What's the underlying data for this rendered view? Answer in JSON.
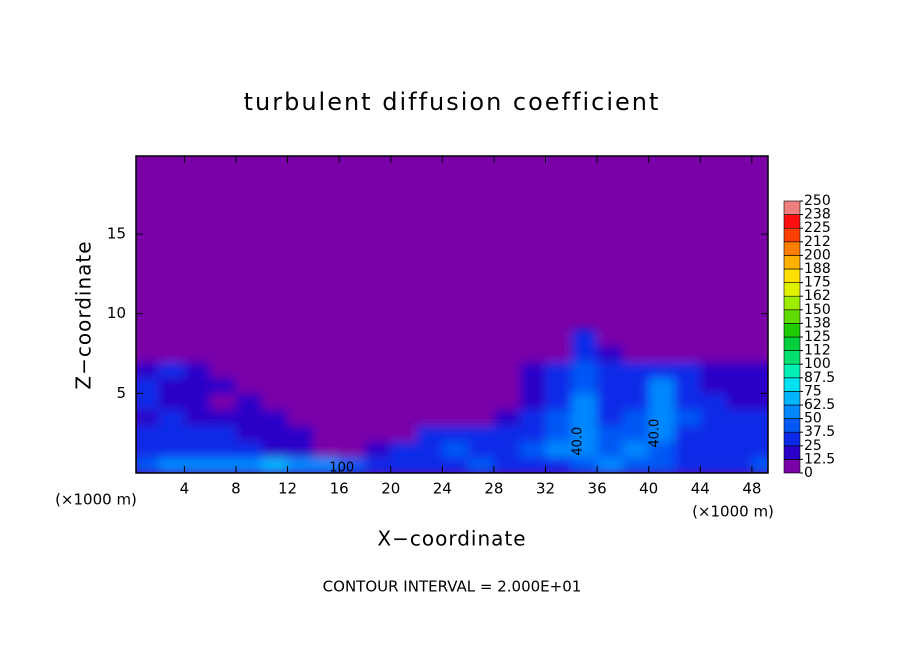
{
  "chart_data": {
    "type": "contour",
    "title": "turbulent diffusion coefficient",
    "x_label": "X−coordinate",
    "y_label": "Z−coordinate",
    "x_unit": "(×1000 m)",
    "y_unit": "(×1000 m)",
    "footnote": "CONTOUR INTERVAL = 2.000E+01",
    "xlim": [
      0.25,
      49.25
    ],
    "xticks": [
      4,
      8,
      12,
      16,
      20,
      24,
      28,
      32,
      36,
      40,
      44,
      48
    ],
    "ylim": [
      0,
      19.9
    ],
    "yticks": [
      5,
      10,
      15
    ],
    "contour_labels": [
      "40.0",
      "40.0",
      "100"
    ],
    "field": {
      "x_edges": [
        0,
        2,
        4,
        6,
        8,
        10,
        12,
        14,
        16,
        18,
        20,
        22,
        24,
        26,
        28,
        30,
        32,
        34,
        36,
        38,
        40,
        42,
        44,
        46,
        48,
        50
      ],
      "z_edges": [
        0,
        1,
        2,
        3,
        4,
        5,
        6,
        7,
        8,
        9
      ],
      "values": [
        [
          45,
          50,
          55,
          55,
          60,
          65,
          55,
          50,
          40,
          30,
          25,
          30,
          35,
          40,
          30,
          30,
          35,
          45,
          50,
          45,
          40,
          35,
          30,
          35,
          40
        ],
        [
          35,
          30,
          30,
          25,
          25,
          20,
          15,
          10,
          12,
          20,
          25,
          35,
          40,
          30,
          35,
          40,
          50,
          55,
          45,
          50,
          40,
          35,
          30,
          30,
          35
        ],
        [
          30,
          25,
          30,
          25,
          20,
          15,
          15,
          10,
          5,
          8,
          10,
          25,
          30,
          25,
          30,
          30,
          45,
          55,
          40,
          45,
          50,
          35,
          30,
          25,
          30
        ],
        [
          20,
          25,
          15,
          20,
          20,
          15,
          10,
          5,
          3,
          5,
          5,
          5,
          10,
          10,
          15,
          25,
          40,
          55,
          35,
          40,
          55,
          40,
          30,
          25,
          25
        ],
        [
          25,
          15,
          20,
          10,
          15,
          10,
          10,
          5,
          5,
          2,
          2,
          2,
          2,
          5,
          10,
          20,
          35,
          50,
          30,
          35,
          60,
          35,
          25,
          20,
          20
        ],
        [
          25,
          20,
          15,
          15,
          10,
          10,
          5,
          5,
          2,
          0,
          0,
          0,
          0,
          0,
          5,
          20,
          30,
          45,
          35,
          30,
          50,
          30,
          20,
          20,
          20
        ],
        [
          20,
          25,
          20,
          10,
          5,
          5,
          2,
          0,
          0,
          0,
          0,
          0,
          0,
          0,
          0,
          15,
          30,
          40,
          30,
          25,
          25,
          25,
          20,
          20,
          20
        ],
        [
          5,
          3,
          2,
          0,
          0,
          0,
          0,
          0,
          0,
          0,
          0,
          0,
          0,
          0,
          0,
          0,
          10,
          30,
          20,
          5,
          2,
          2,
          2,
          2,
          2
        ],
        [
          0,
          0,
          0,
          0,
          0,
          0,
          0,
          0,
          0,
          0,
          0,
          0,
          0,
          0,
          0,
          0,
          5,
          25,
          10,
          0,
          0,
          0,
          0,
          0,
          0
        ]
      ]
    },
    "colorbar": {
      "ticks": [
        0,
        12.5,
        25,
        37.5,
        50,
        62.5,
        75,
        87.5,
        100,
        {
          "value": 112.5,
          "label": "112"
        },
        125,
        {
          "value": 137.5,
          "label": "138"
        },
        150,
        {
          "value": 162.5,
          "label": "162"
        },
        175,
        {
          "value": 187.5,
          "label": "188"
        },
        200,
        {
          "value": 212.5,
          "label": "212"
        },
        225,
        {
          "value": 237.5,
          "label": "238"
        },
        250
      ],
      "colors": [
        "#7a00a8",
        "#2a00c8",
        "#0a2ae8",
        "#0058f4",
        "#0088ff",
        "#00b4ff",
        "#00e0f0",
        "#00f0b8",
        "#00e070",
        "#00d040",
        "#20cc00",
        "#60dc00",
        "#a0ec00",
        "#e0f000",
        "#ffe000",
        "#ffb000",
        "#ff8000",
        "#ff4000",
        "#ff1010",
        "#f08080"
      ]
    }
  }
}
